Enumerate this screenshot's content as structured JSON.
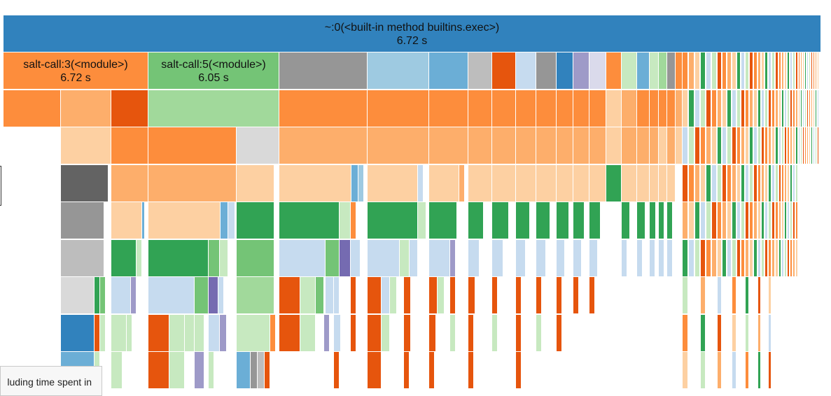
{
  "flamegraph": {
    "root": {
      "name": "~:0(<built-in method builtins.exec>)",
      "time": "6.72 s",
      "color": "#3182bd"
    },
    "frames": [
      {
        "name": "salt-call:3(<module>)",
        "time": "6.72 s",
        "color": "#fd8d3c"
      },
      {
        "name": "salt-call:5(<module>)",
        "time": "6.05 s",
        "color": "#74c476"
      }
    ],
    "palette": {
      "orange_dark": "#e6550d",
      "orange": "#fd8d3c",
      "orange_light": "#fdae6b",
      "orange_pale": "#fdd0a2",
      "green_dark": "#31a354",
      "green": "#74c476",
      "green_light": "#a1d99b",
      "green_pale": "#c7e9c0",
      "blue_dark": "#3182bd",
      "blue": "#6baed6",
      "blue_light": "#9ecae1",
      "blue_pale": "#c6dbef",
      "purple": "#756bb1",
      "purple_light": "#9e9ac8",
      "purple_pale": "#dadaeb",
      "gray_dark": "#636363",
      "gray": "#969696",
      "gray_light": "#bdbdbd",
      "gray_pale": "#d9d9d9"
    }
  },
  "tooltip": {
    "text": "luding time spent in"
  }
}
